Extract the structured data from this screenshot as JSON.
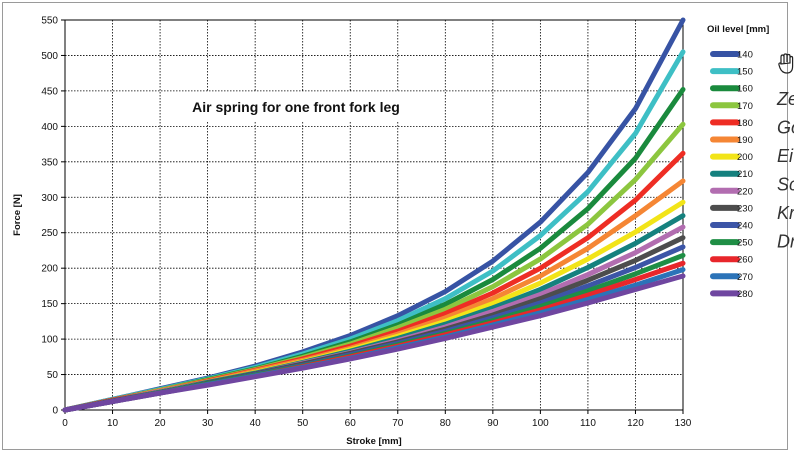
{
  "chart_data": {
    "type": "line",
    "title": "Air spring for one front fork leg",
    "xlabel": "Stroke [mm]",
    "ylabel": "Force [N]",
    "xlim": [
      0,
      130
    ],
    "ylim": [
      0,
      550
    ],
    "x_ticks": [
      0,
      10,
      20,
      30,
      40,
      50,
      60,
      70,
      80,
      90,
      100,
      110,
      120,
      130
    ],
    "y_ticks": [
      0,
      50,
      100,
      150,
      200,
      250,
      300,
      350,
      400,
      450,
      500,
      550
    ],
    "grid": true,
    "legend_title": "Oil level [mm]",
    "legend_position": "right",
    "x": [
      0,
      10,
      20,
      30,
      40,
      50,
      60,
      70,
      80,
      90,
      100,
      110,
      120,
      130
    ],
    "series": [
      {
        "name": "140",
        "color": "#3753a4",
        "values": [
          0,
          15,
          30,
          45,
          62,
          82,
          105,
          133,
          167,
          210,
          265,
          335,
          425,
          550
        ]
      },
      {
        "name": "150",
        "color": "#3ebfc5",
        "values": [
          0,
          15,
          29,
          44,
          60,
          79,
          100,
          126,
          157,
          196,
          246,
          308,
          390,
          505
        ]
      },
      {
        "name": "160",
        "color": "#1a8a3d",
        "values": [
          0,
          14,
          28,
          43,
          58,
          76,
          96,
          120,
          149,
          184,
          228,
          284,
          355,
          452
        ]
      },
      {
        "name": "170",
        "color": "#8cc63f",
        "values": [
          0,
          14,
          28,
          42,
          57,
          74,
          93,
          116,
          142,
          174,
          213,
          262,
          325,
          403
        ]
      },
      {
        "name": "180",
        "color": "#ee2d24",
        "values": [
          0,
          14,
          27,
          41,
          56,
          72,
          90,
          111,
          136,
          165,
          200,
          243,
          296,
          362
        ]
      },
      {
        "name": "190",
        "color": "#f58634",
        "values": [
          0,
          13,
          27,
          40,
          55,
          70,
          87,
          107,
          130,
          157,
          189,
          228,
          274,
          323
        ]
      },
      {
        "name": "200",
        "color": "#f2e418",
        "values": [
          0,
          13,
          26,
          39,
          53,
          68,
          85,
          104,
          125,
          150,
          179,
          213,
          251,
          293
        ]
      },
      {
        "name": "210",
        "color": "#15817e",
        "values": [
          0,
          13,
          26,
          39,
          52,
          67,
          83,
          101,
          121,
          144,
          170,
          201,
          235,
          274
        ]
      },
      {
        "name": "220",
        "color": "#b26db0",
        "values": [
          0,
          13,
          26,
          38,
          51,
          66,
          81,
          98,
          117,
          139,
          163,
          191,
          222,
          258
        ]
      },
      {
        "name": "230",
        "color": "#4d4d4d",
        "values": [
          0,
          13,
          25,
          38,
          51,
          65,
          80,
          96,
          114,
          134,
          157,
          183,
          211,
          243
        ]
      },
      {
        "name": "240",
        "color": "#3c55a7",
        "values": [
          0,
          12,
          25,
          37,
          50,
          63,
          78,
          94,
          111,
          130,
          151,
          175,
          201,
          230
        ]
      },
      {
        "name": "250",
        "color": "#1f8e45",
        "values": [
          0,
          12,
          25,
          37,
          49,
          62,
          76,
          92,
          108,
          126,
          146,
          168,
          192,
          218
        ]
      },
      {
        "name": "260",
        "color": "#e8262b",
        "values": [
          0,
          12,
          24,
          36,
          48,
          61,
          75,
          90,
          106,
          123,
          141,
          162,
          184,
          207
        ]
      },
      {
        "name": "270",
        "color": "#2b73b8",
        "values": [
          0,
          12,
          24,
          36,
          48,
          60,
          73,
          88,
          103,
          120,
          137,
          156,
          176,
          198
        ]
      },
      {
        "name": "280",
        "color": "#6f46a0",
        "values": [
          0,
          12,
          24,
          35,
          47,
          59,
          72,
          86,
          101,
          117,
          133,
          151,
          170,
          189
        ]
      }
    ]
  },
  "side_panel": {
    "hand_icon": "hand-icon",
    "words": [
      "Ze",
      "Go",
      "Ei",
      "Sc",
      "Kr",
      "Dr"
    ]
  }
}
